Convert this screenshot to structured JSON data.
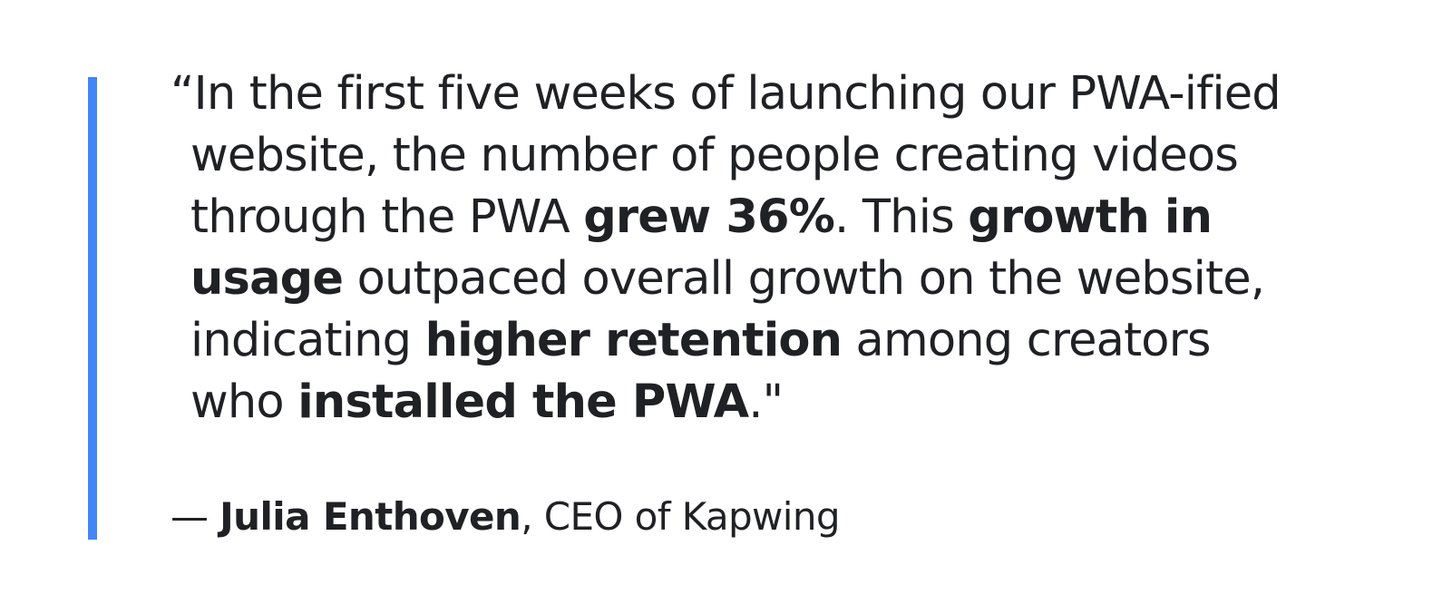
{
  "colors": {
    "accent_bar": "#4285f4",
    "text": "#202124",
    "background": "#ffffff"
  },
  "quote": {
    "line1": {
      "text1": "“In the first five weeks of launching our PWA-ified"
    },
    "line2": {
      "text1": "website, the number of people creating videos"
    },
    "line3": {
      "text1": "through the PWA ",
      "bold1": "grew 36%",
      "text2": ". This ",
      "bold2": "growth in"
    },
    "line4": {
      "bold1": "usage",
      "text1": " outpaced overall growth on the website,"
    },
    "line5": {
      "text1": "indicating ",
      "bold1": "higher retention",
      "text2": " among creators"
    },
    "line6": {
      "text1": "who ",
      "bold1": "installed the PWA",
      "text2": ".\""
    }
  },
  "attribution": {
    "dash": "— ",
    "name": "Julia Enthoven",
    "title": ", CEO of Kapwing"
  }
}
